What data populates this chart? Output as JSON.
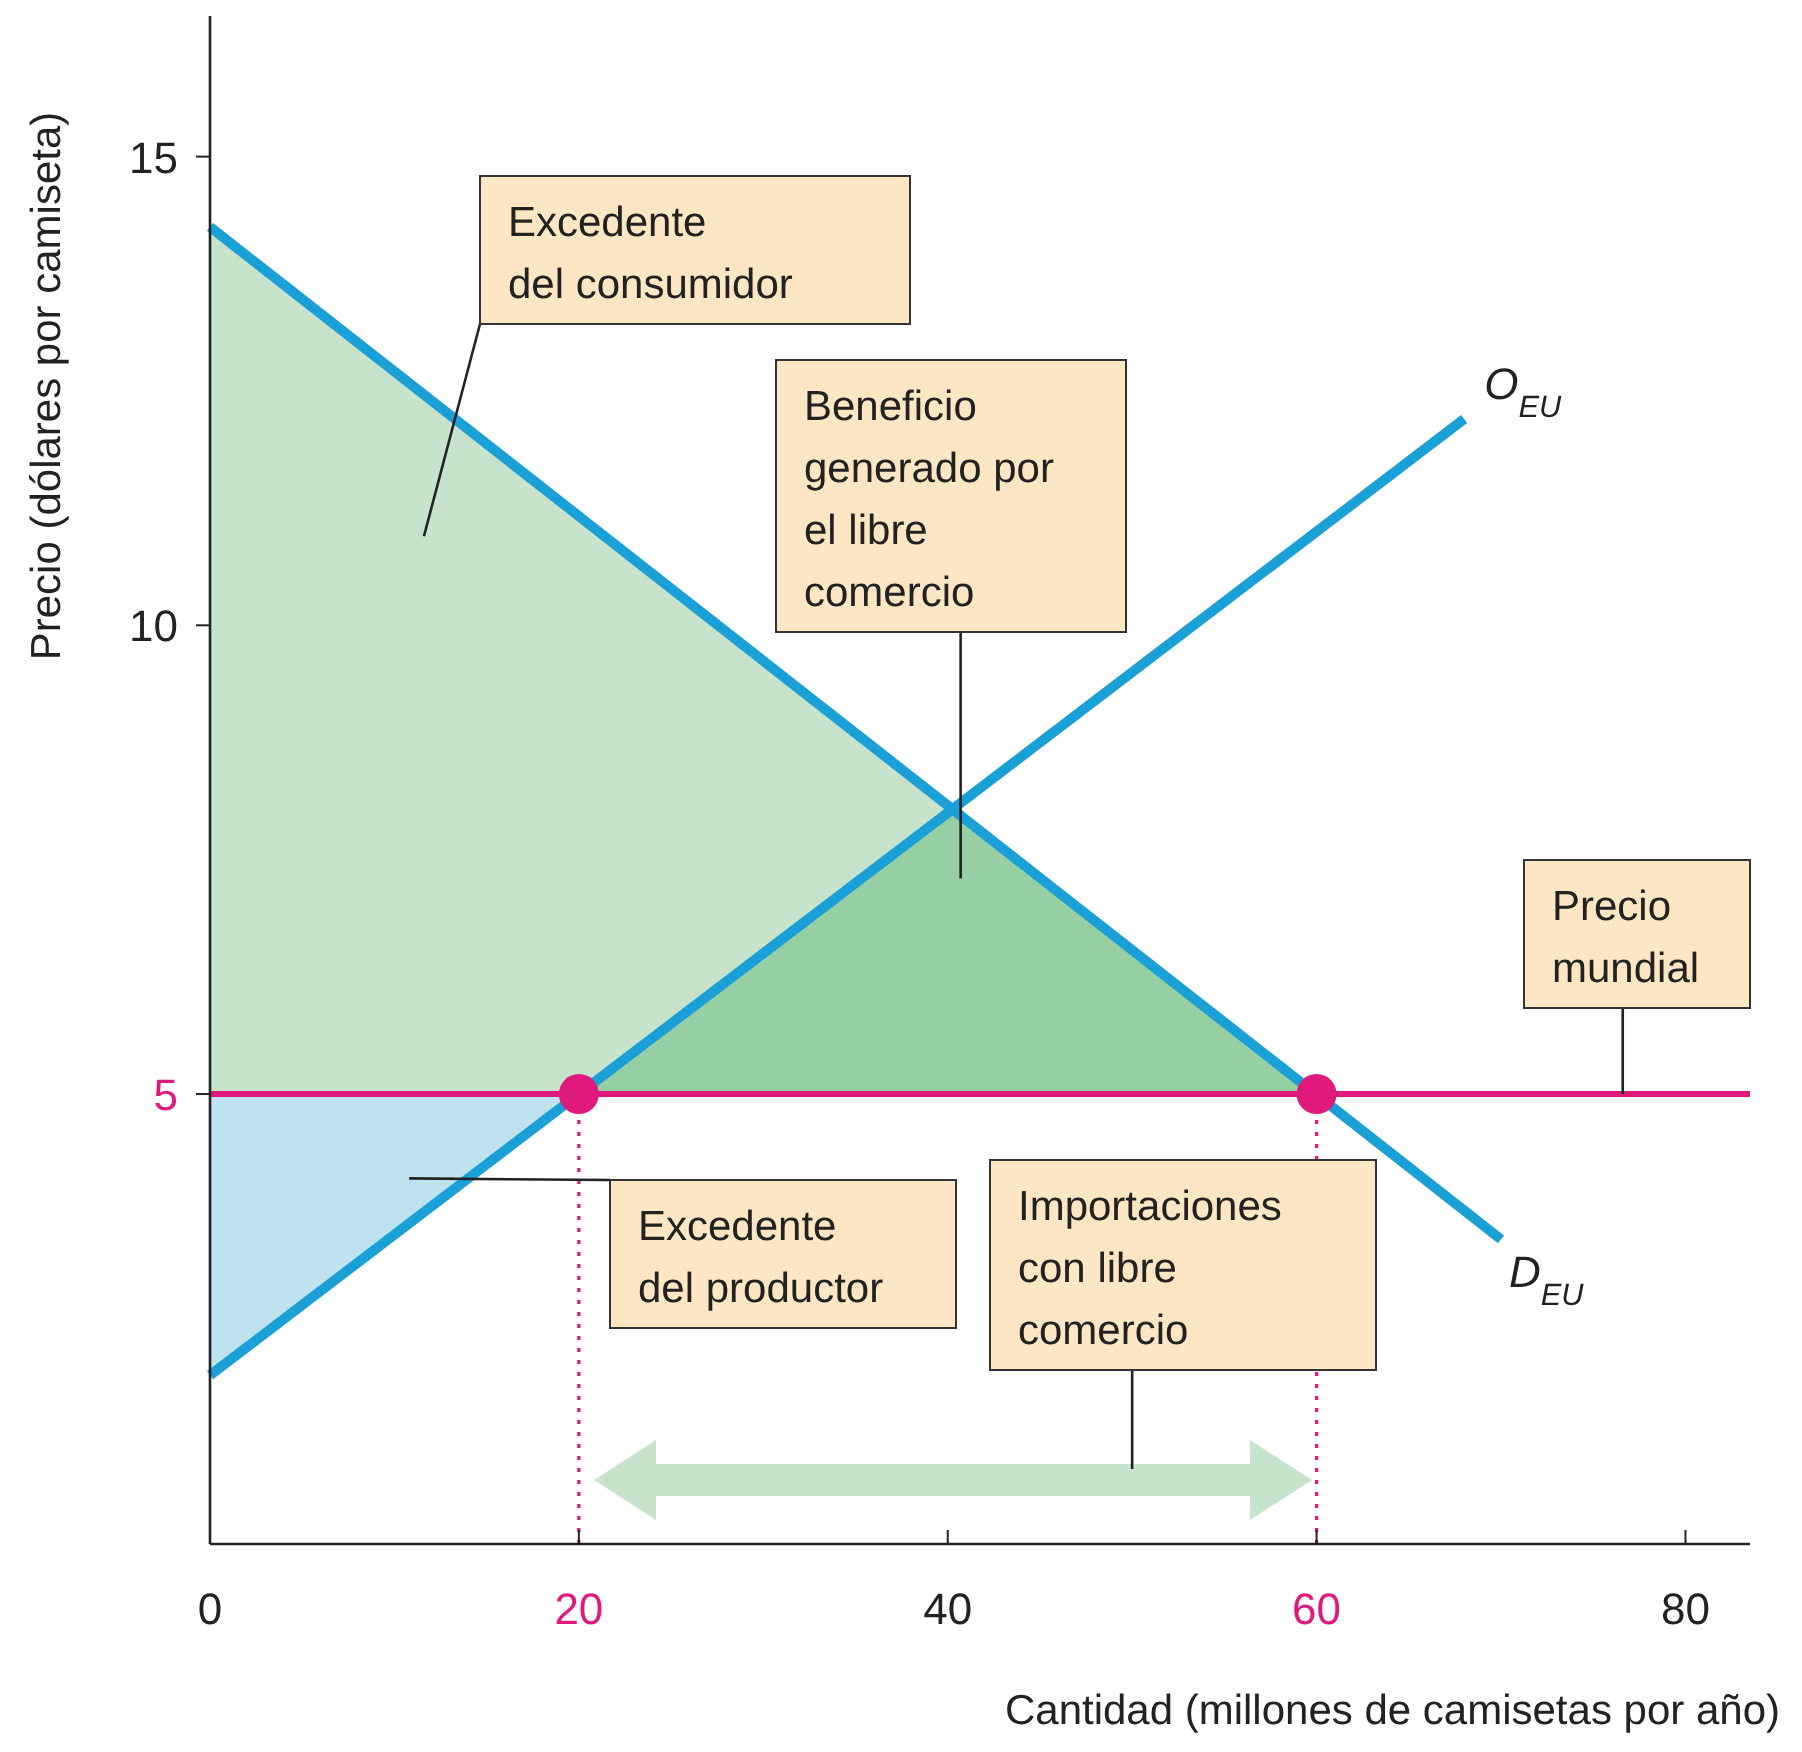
{
  "chart_data": {
    "type": "line",
    "xlabel": "Cantidad (millones de camisetas por año)",
    "ylabel": "Precio (dólares por camiseta)",
    "xlim": [
      0,
      83.5
    ],
    "ylim": [
      0.2,
      16.5
    ],
    "xticks": [
      0,
      20,
      40,
      60,
      80
    ],
    "yticks": [
      5,
      10,
      15
    ],
    "grid": false,
    "series": [
      {
        "x": [
          20,
          20
        ],
        "values": [
          0.2,
          5
        ],
        "color": "#e0197d",
        "line_style": "dotted"
      },
      {
        "x": [
          60,
          60
        ],
        "values": [
          0.2,
          5
        ],
        "color": "#e0197d",
        "line_style": "dotted"
      },
      {
        "name": "D$_{EU}$",
        "x": [
          0,
          70
        ],
        "values": [
          14.25,
          3.45
        ],
        "color": "#1a9fd6",
        "line_style": "solid"
      },
      {
        "name": "O$_{EU}$",
        "x": [
          0,
          68
        ],
        "values": [
          2,
          12.2
        ],
        "color": "#1a9fd6",
        "line_style": "solid"
      },
      {
        "type": "scatter",
        "x": [
          20,
          60
        ],
        "values": [
          5,
          5
        ],
        "color": "#e0197d",
        "marker": "circle"
      }
    ],
    "ref_lines": [
      {
        "axis": "y",
        "value": 5,
        "label": "Precio mundial",
        "color": "#e0197d"
      }
    ],
    "annotations": [
      "Excedente del consumidor",
      "Beneficio generado por el libre comercio",
      "Excedente del productor",
      "Importaciones con libre comercio"
    ]
  }
}
